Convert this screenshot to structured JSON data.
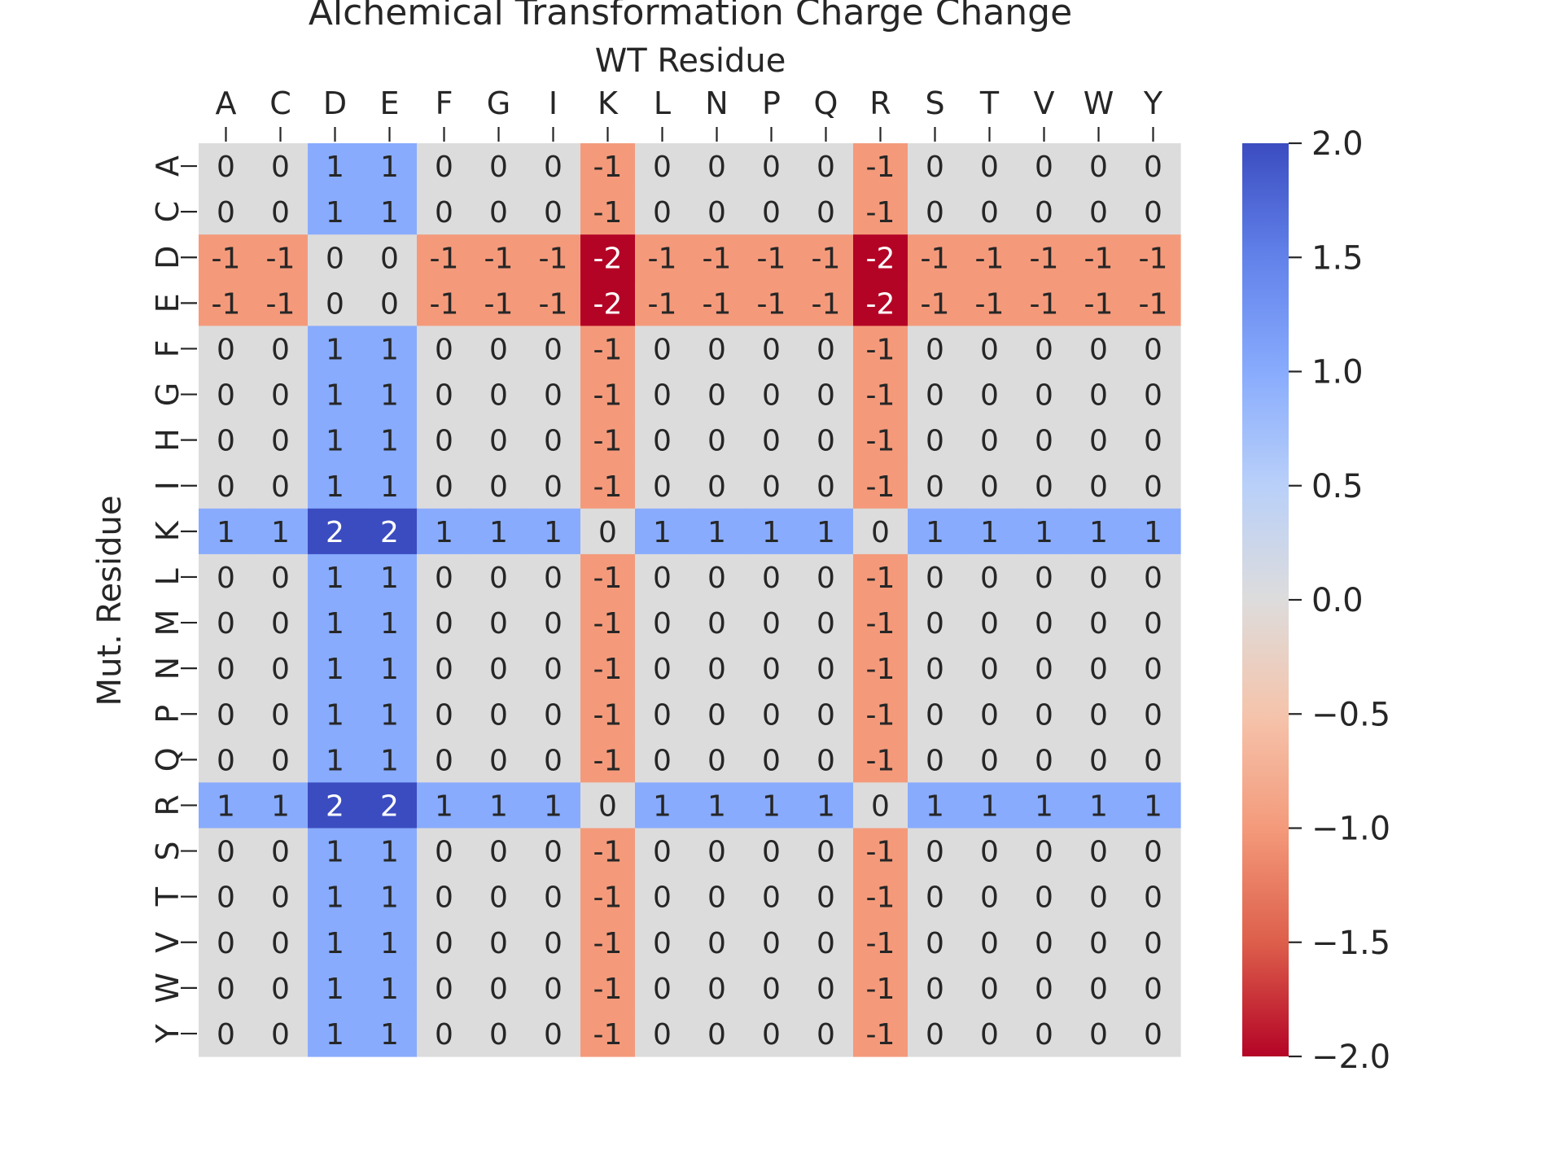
{
  "chart_data": {
    "type": "heatmap",
    "title": "Alchemical Transformation Charge Change",
    "xlabel": "WT Residue",
    "ylabel": "Mut. Residue",
    "x_categories": [
      "A",
      "C",
      "D",
      "E",
      "F",
      "G",
      "I",
      "K",
      "L",
      "N",
      "P",
      "Q",
      "R",
      "S",
      "T",
      "V",
      "W",
      "Y"
    ],
    "y_categories": [
      "A",
      "C",
      "D",
      "E",
      "F",
      "G",
      "H",
      "I",
      "K",
      "L",
      "M",
      "N",
      "P",
      "Q",
      "R",
      "S",
      "T",
      "V",
      "W",
      "Y"
    ],
    "values": [
      [
        0,
        0,
        1,
        1,
        0,
        0,
        0,
        -1,
        0,
        0,
        0,
        0,
        -1,
        0,
        0,
        0,
        0,
        0
      ],
      [
        0,
        0,
        1,
        1,
        0,
        0,
        0,
        -1,
        0,
        0,
        0,
        0,
        -1,
        0,
        0,
        0,
        0,
        0
      ],
      [
        -1,
        -1,
        0,
        0,
        -1,
        -1,
        -1,
        -2,
        -1,
        -1,
        -1,
        -1,
        -2,
        -1,
        -1,
        -1,
        -1,
        -1
      ],
      [
        -1,
        -1,
        0,
        0,
        -1,
        -1,
        -1,
        -2,
        -1,
        -1,
        -1,
        -1,
        -2,
        -1,
        -1,
        -1,
        -1,
        -1
      ],
      [
        0,
        0,
        1,
        1,
        0,
        0,
        0,
        -1,
        0,
        0,
        0,
        0,
        -1,
        0,
        0,
        0,
        0,
        0
      ],
      [
        0,
        0,
        1,
        1,
        0,
        0,
        0,
        -1,
        0,
        0,
        0,
        0,
        -1,
        0,
        0,
        0,
        0,
        0
      ],
      [
        0,
        0,
        1,
        1,
        0,
        0,
        0,
        -1,
        0,
        0,
        0,
        0,
        -1,
        0,
        0,
        0,
        0,
        0
      ],
      [
        0,
        0,
        1,
        1,
        0,
        0,
        0,
        -1,
        0,
        0,
        0,
        0,
        -1,
        0,
        0,
        0,
        0,
        0
      ],
      [
        1,
        1,
        2,
        2,
        1,
        1,
        1,
        0,
        1,
        1,
        1,
        1,
        0,
        1,
        1,
        1,
        1,
        1
      ],
      [
        0,
        0,
        1,
        1,
        0,
        0,
        0,
        -1,
        0,
        0,
        0,
        0,
        -1,
        0,
        0,
        0,
        0,
        0
      ],
      [
        0,
        0,
        1,
        1,
        0,
        0,
        0,
        -1,
        0,
        0,
        0,
        0,
        -1,
        0,
        0,
        0,
        0,
        0
      ],
      [
        0,
        0,
        1,
        1,
        0,
        0,
        0,
        -1,
        0,
        0,
        0,
        0,
        -1,
        0,
        0,
        0,
        0,
        0
      ],
      [
        0,
        0,
        1,
        1,
        0,
        0,
        0,
        -1,
        0,
        0,
        0,
        0,
        -1,
        0,
        0,
        0,
        0,
        0
      ],
      [
        0,
        0,
        1,
        1,
        0,
        0,
        0,
        -1,
        0,
        0,
        0,
        0,
        -1,
        0,
        0,
        0,
        0,
        0
      ],
      [
        1,
        1,
        2,
        2,
        1,
        1,
        1,
        0,
        1,
        1,
        1,
        1,
        0,
        1,
        1,
        1,
        1,
        1
      ],
      [
        0,
        0,
        1,
        1,
        0,
        0,
        0,
        -1,
        0,
        0,
        0,
        0,
        -1,
        0,
        0,
        0,
        0,
        0
      ],
      [
        0,
        0,
        1,
        1,
        0,
        0,
        0,
        -1,
        0,
        0,
        0,
        0,
        -1,
        0,
        0,
        0,
        0,
        0
      ],
      [
        0,
        0,
        1,
        1,
        0,
        0,
        0,
        -1,
        0,
        0,
        0,
        0,
        -1,
        0,
        0,
        0,
        0,
        0
      ],
      [
        0,
        0,
        1,
        1,
        0,
        0,
        0,
        -1,
        0,
        0,
        0,
        0,
        -1,
        0,
        0,
        0,
        0,
        0
      ],
      [
        0,
        0,
        1,
        1,
        0,
        0,
        0,
        -1,
        0,
        0,
        0,
        0,
        -1,
        0,
        0,
        0,
        0,
        0
      ]
    ],
    "colormap": "coolwarm_r",
    "vmin": -2,
    "vmax": 2,
    "colors": {
      "2": "#3b4cc0",
      "1": "#88abfd",
      "0": "#dddcdc",
      "-1": "#f49a7b",
      "-2": "#b40426"
    },
    "colorbar_ticks": [
      "2.0",
      "1.5",
      "1.0",
      "0.5",
      "0.0",
      "−0.5",
      "−1.0",
      "−1.5",
      "−2.0"
    ],
    "annotations": true,
    "x_axis_position": "top",
    "grid": false,
    "legend": "colorbar right"
  }
}
